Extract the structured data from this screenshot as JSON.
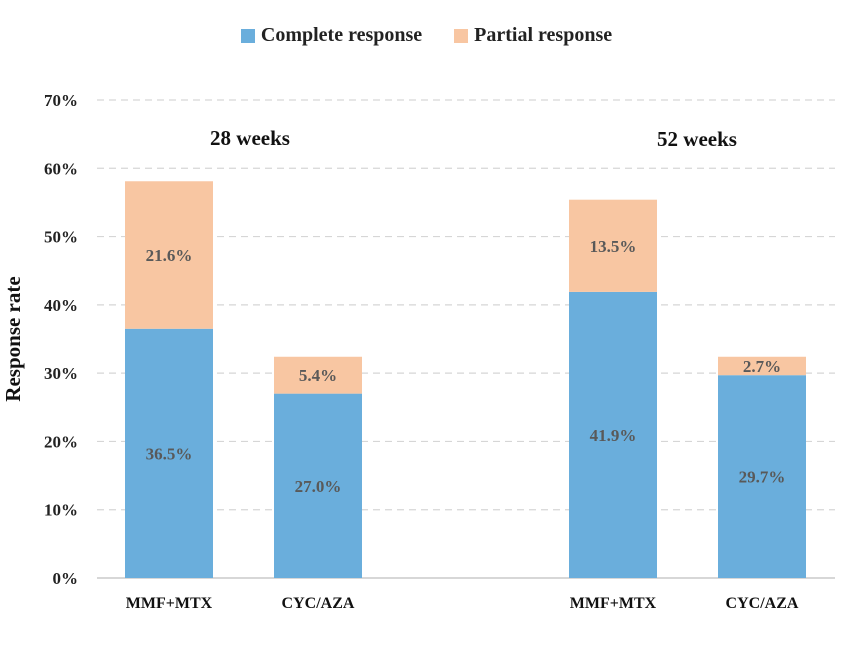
{
  "chart_data": {
    "type": "bar",
    "stacked": true,
    "ylabel": "Response rate",
    "ylim": [
      0,
      70
    ],
    "yticks": [
      "0%",
      "10%",
      "20%",
      "30%",
      "40%",
      "50%",
      "60%",
      "70%"
    ],
    "grid": true,
    "legend_placement": "top",
    "groups": [
      {
        "label": "28 weeks",
        "categories": [
          "MMF+MTX",
          "CYC/AZA"
        ]
      },
      {
        "label": "52 weeks",
        "categories": [
          "MMF+MTX",
          "CYC/AZA"
        ]
      }
    ],
    "categories": [
      "MMF+MTX",
      "CYC/AZA",
      "MMF+MTX",
      "CYC/AZA"
    ],
    "series": [
      {
        "name": "Complete response",
        "color": "#6aaedc",
        "values": [
          36.5,
          27.0,
          41.9,
          29.7
        ],
        "labels": [
          "36.5%",
          "27.0%",
          "41.9%",
          "29.7%"
        ]
      },
      {
        "name": "Partial response",
        "color": "#f8c6a2",
        "values": [
          21.6,
          5.4,
          13.5,
          2.7
        ],
        "labels": [
          "21.6%",
          "5.4%",
          "13.5%",
          "2.7%"
        ]
      }
    ]
  }
}
